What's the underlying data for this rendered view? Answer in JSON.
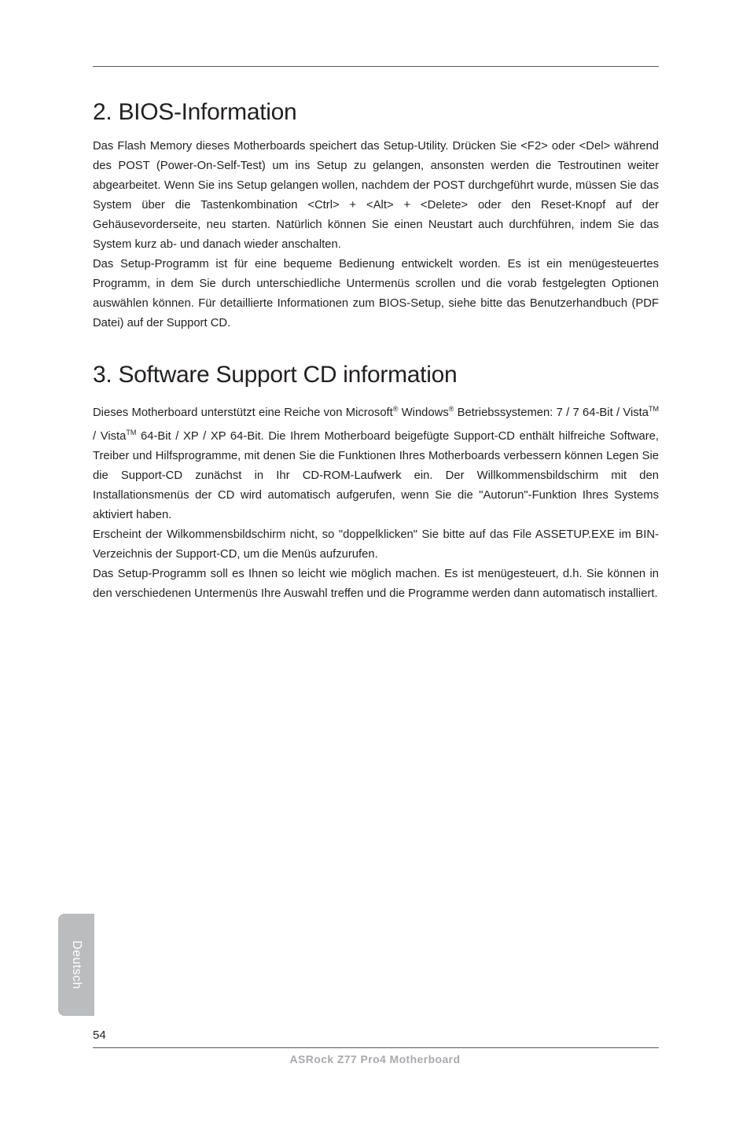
{
  "section1": {
    "heading": "2.  BIOS-Information",
    "body": "Das Flash Memory dieses Motherboards speichert das Setup-Utility. Drücken Sie <F2> oder <Del> während des POST (Power-On-Self-Test) um ins Setup zu gelangen, ansonsten werden die Testroutinen weiter abgearbeitet. Wenn Sie ins Setup gelangen wollen, nachdem der POST durchgeführt wurde, müssen Sie das System über die Tastenkombination <Ctrl> + <Alt> + <Delete> oder den Reset-Knopf auf der Gehäusevorderseite, neu starten. Natürlich können Sie einen Neustart auch durchführen, indem Sie das System kurz ab- und danach wieder anschalten.",
    "body2": "Das Setup-Programm ist für eine bequeme Bedienung entwickelt worden. Es ist ein menügesteuertes Programm, in dem Sie durch unterschiedliche Untermenüs scrollen und die vorab festgelegten Optionen auswählen können. Für detaillierte Informationen zum BIOS-Setup, siehe bitte das Benutzerhandbuch (PDF Datei) auf der Support CD."
  },
  "section2": {
    "heading": "3.  Software Support CD information",
    "body_pre": "Dieses Motherboard unterstützt eine Reiche von Microsoft",
    "body_mid1": " Windows",
    "body_mid2": " Betriebssystemen: 7 / 7 64-Bit / Vista",
    "body_mid3": " / Vista",
    "body_mid4": " 64-Bit / XP / XP 64-Bit. Die Ihrem Motherboard beigefügte Support-CD enthält hilfreiche Software, Treiber und Hilfsprogramme, mit denen Sie die Funktionen Ihres Motherboards verbessern können Legen Sie die Support-CD zunächst in Ihr CD-ROM-Laufwerk ein. Der Willkommensbildschirm mit den Installationsmenüs der CD wird automatisch aufgerufen, wenn Sie die \"Autorun\"-Funktion Ihres Systems aktiviert haben.",
    "body2": "Erscheint der Wilkommensbildschirm nicht, so \"doppelklicken\" Sie bitte auf das File ASSETUP.EXE im BIN-Verzeichnis der Support-CD, um die Menüs aufzurufen.",
    "body3": "Das Setup-Programm soll es Ihnen so leicht wie möglich machen. Es ist menügesteuert, d.h. Sie können in den verschiedenen Untermenüs Ihre Auswahl treffen und die Programme werden dann automatisch installiert."
  },
  "sideTab": "Deutsch",
  "pageNumber": "54",
  "footer": "ASRock  Z77  Pro4  Motherboard",
  "sup_r": "®",
  "sup_tm": "TM"
}
